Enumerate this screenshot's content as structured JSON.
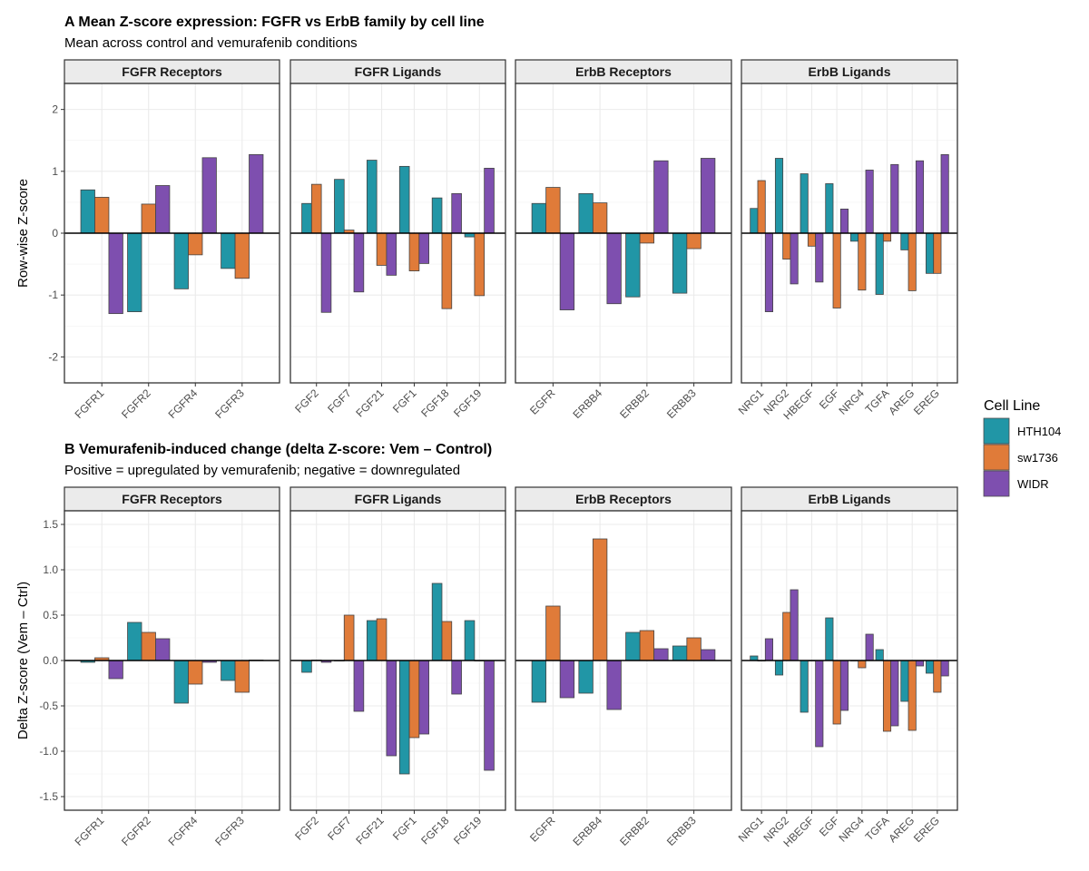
{
  "chart_data": {
    "type": "bar",
    "legend": {
      "title": "Cell Line",
      "position": "right",
      "entries": [
        {
          "name": "HTH104",
          "color": "#2196A6"
        },
        {
          "name": "sw1736",
          "color": "#E07B39"
        },
        {
          "name": "WIDR",
          "color": "#7E4FAF"
        }
      ]
    },
    "series_names": [
      "HTH104",
      "sw1736",
      "WIDR"
    ],
    "panels": [
      {
        "id": "A",
        "title": "A  Mean Z-score expression: FGFR vs ErbB family by cell line",
        "subtitle": "Mean across control and vemurafenib conditions",
        "ylabel": "Row-wise Z-score",
        "ylim": [
          -2.42,
          2.42
        ],
        "yticks": [
          -2,
          -1,
          0,
          1,
          2
        ],
        "ytick_labels": [
          "-2",
          "-1",
          "0",
          "1",
          "2"
        ],
        "grid": true,
        "facets": [
          {
            "label": "FGFR Receptors",
            "categories": [
              "FGFR1",
              "FGFR2",
              "FGFR4",
              "FGFR3"
            ],
            "series": [
              {
                "name": "HTH104",
                "values": [
                  0.7,
                  -1.27,
                  -0.9,
                  -0.57
                ]
              },
              {
                "name": "sw1736",
                "values": [
                  0.58,
                  0.47,
                  -0.35,
                  -0.73
                ]
              },
              {
                "name": "WIDR",
                "values": [
                  -1.3,
                  0.77,
                  1.22,
                  1.27
                ]
              }
            ]
          },
          {
            "label": "FGFR Ligands",
            "categories": [
              "FGF2",
              "FGF7",
              "FGF21",
              "FGF1",
              "FGF18",
              "FGF19"
            ],
            "series": [
              {
                "name": "HTH104",
                "values": [
                  0.48,
                  0.87,
                  1.18,
                  1.08,
                  0.57,
                  -0.06
                ]
              },
              {
                "name": "sw1736",
                "values": [
                  0.79,
                  0.05,
                  -0.52,
                  -0.61,
                  -1.22,
                  -1.01
                ]
              },
              {
                "name": "WIDR",
                "values": [
                  -1.28,
                  -0.95,
                  -0.68,
                  -0.49,
                  0.64,
                  1.05
                ]
              }
            ]
          },
          {
            "label": "ErbB Receptors",
            "categories": [
              "EGFR",
              "ERBB4",
              "ERBB2",
              "ERBB3"
            ],
            "series": [
              {
                "name": "HTH104",
                "values": [
                  0.48,
                  0.64,
                  -1.03,
                  -0.97
                ]
              },
              {
                "name": "sw1736",
                "values": [
                  0.74,
                  0.49,
                  -0.16,
                  -0.25
                ]
              },
              {
                "name": "WIDR",
                "values": [
                  -1.24,
                  -1.14,
                  1.17,
                  1.21
                ]
              }
            ]
          },
          {
            "label": "ErbB Ligands",
            "categories": [
              "NRG1",
              "NRG2",
              "HBEGF",
              "EGF",
              "NRG4",
              "TGFA",
              "AREG",
              "EREG"
            ],
            "series": [
              {
                "name": "HTH104",
                "values": [
                  0.4,
                  1.21,
                  0.96,
                  0.8,
                  -0.13,
                  -0.99,
                  -0.27,
                  -0.65
                ]
              },
              {
                "name": "sw1736",
                "values": [
                  0.85,
                  -0.42,
                  -0.21,
                  -1.21,
                  -0.92,
                  -0.13,
                  -0.93,
                  -0.65
                ]
              },
              {
                "name": "WIDR",
                "values": [
                  -1.27,
                  -0.82,
                  -0.79,
                  0.39,
                  1.02,
                  1.11,
                  1.17,
                  1.27
                ]
              }
            ]
          }
        ]
      },
      {
        "id": "B",
        "title": "B  Vemurafenib-induced change (delta Z-score: Vem – Control)",
        "subtitle": "Positive = upregulated by vemurafenib; negative = downregulated",
        "ylabel": "Delta Z-score (Vem – Ctrl)",
        "ylim": [
          -1.65,
          1.65
        ],
        "yticks": [
          -1.5,
          -1.0,
          -0.5,
          0.0,
          0.5,
          1.0,
          1.5
        ],
        "ytick_labels": [
          "-1.5",
          "-1.0",
          "-0.5",
          "0.0",
          "0.5",
          "1.0",
          "1.5"
        ],
        "grid": true,
        "facets": [
          {
            "label": "FGFR Receptors",
            "categories": [
              "FGFR1",
              "FGFR2",
              "FGFR4",
              "FGFR3"
            ],
            "series": [
              {
                "name": "HTH104",
                "values": [
                  -0.02,
                  0.42,
                  -0.47,
                  -0.22
                ]
              },
              {
                "name": "sw1736",
                "values": [
                  0.03,
                  0.31,
                  -0.26,
                  -0.35
                ]
              },
              {
                "name": "WIDR",
                "values": [
                  -0.2,
                  0.24,
                  -0.02,
                  0.005
                ]
              }
            ]
          },
          {
            "label": "FGFR Ligands",
            "categories": [
              "FGF2",
              "FGF7",
              "FGF21",
              "FGF1",
              "FGF18",
              "FGF19"
            ],
            "series": [
              {
                "name": "HTH104",
                "values": [
                  -0.13,
                  0.0,
                  0.44,
                  -1.25,
                  0.85,
                  0.44
                ]
              },
              {
                "name": "sw1736",
                "values": [
                  0.005,
                  0.5,
                  0.46,
                  -0.85,
                  0.43,
                  0.0
                ]
              },
              {
                "name": "WIDR",
                "values": [
                  -0.02,
                  -0.56,
                  -1.05,
                  -0.81,
                  -0.37,
                  -1.21
                ]
              }
            ]
          },
          {
            "label": "ErbB Receptors",
            "categories": [
              "EGFR",
              "ERBB4",
              "ERBB2",
              "ERBB3"
            ],
            "series": [
              {
                "name": "HTH104",
                "values": [
                  -0.46,
                  -0.36,
                  0.31,
                  0.16
                ]
              },
              {
                "name": "sw1736",
                "values": [
                  0.6,
                  1.34,
                  0.33,
                  0.25
                ]
              },
              {
                "name": "WIDR",
                "values": [
                  -0.41,
                  -0.54,
                  0.13,
                  0.12
                ]
              }
            ]
          },
          {
            "label": "ErbB Ligands",
            "categories": [
              "NRG1",
              "NRG2",
              "HBEGF",
              "EGF",
              "NRG4",
              "TGFA",
              "AREG",
              "EREG"
            ],
            "series": [
              {
                "name": "HTH104",
                "values": [
                  0.05,
                  -0.16,
                  -0.57,
                  0.47,
                  0.0,
                  0.12,
                  -0.45,
                  -0.14
                ]
              },
              {
                "name": "sw1736",
                "values": [
                  0.0,
                  0.53,
                  0.0,
                  -0.7,
                  -0.08,
                  -0.78,
                  -0.77,
                  -0.35
                ]
              },
              {
                "name": "WIDR",
                "values": [
                  0.24,
                  0.78,
                  -0.95,
                  -0.55,
                  0.29,
                  -0.72,
                  -0.06,
                  -0.17
                ]
              }
            ]
          }
        ]
      }
    ]
  }
}
